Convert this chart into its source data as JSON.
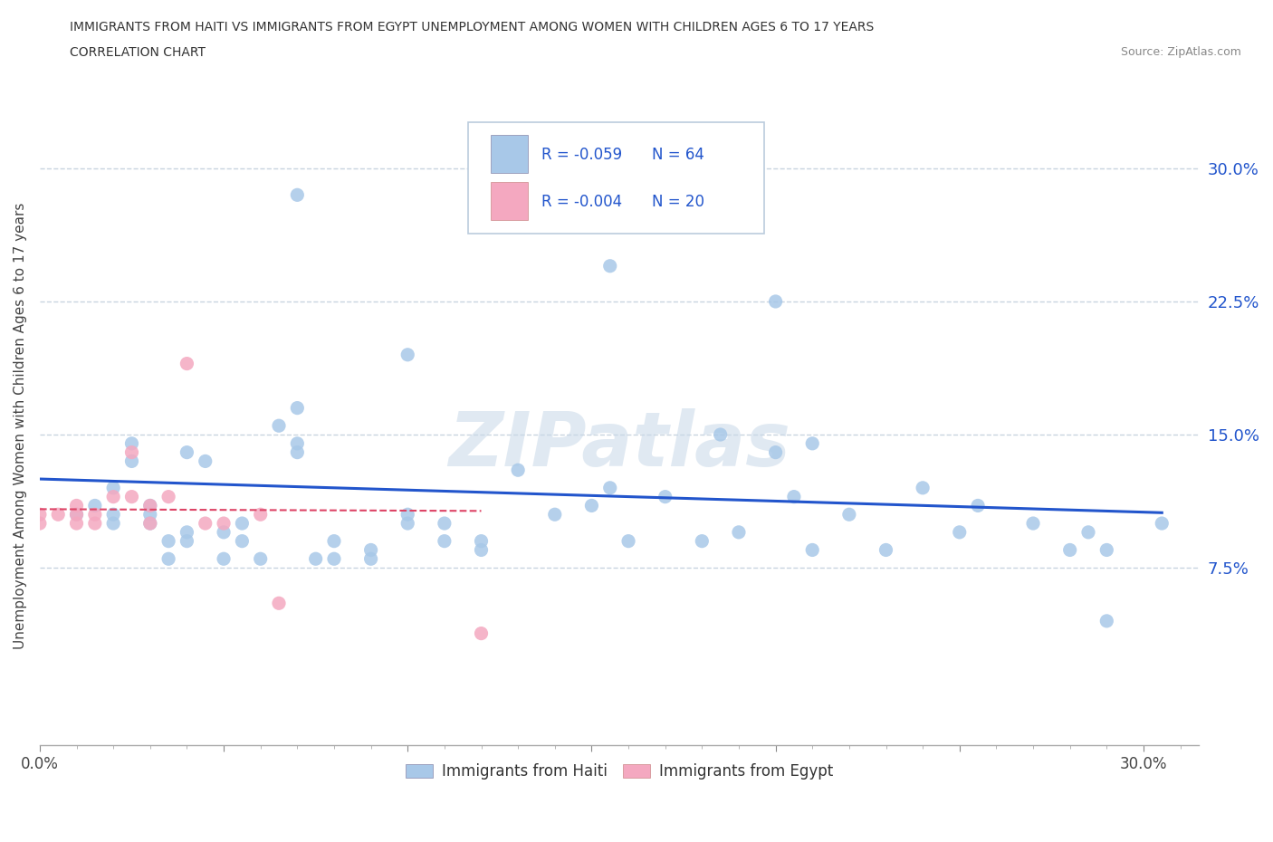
{
  "title_line1": "IMMIGRANTS FROM HAITI VS IMMIGRANTS FROM EGYPT UNEMPLOYMENT AMONG WOMEN WITH CHILDREN AGES 6 TO 17 YEARS",
  "title_line2": "CORRELATION CHART",
  "source_text": "Source: ZipAtlas.com",
  "ylabel": "Unemployment Among Women with Children Ages 6 to 17 years",
  "xlim": [
    0.0,
    0.315
  ],
  "ylim": [
    -0.025,
    0.335
  ],
  "ytick_vals_right": [
    0.075,
    0.15,
    0.225,
    0.3
  ],
  "ytick_labels_right": [
    "7.5%",
    "15.0%",
    "22.5%",
    "30.0%"
  ],
  "xtick_vals": [
    0.0,
    0.05,
    0.1,
    0.15,
    0.2,
    0.25,
    0.3
  ],
  "xtick_labels": [
    "0.0%",
    "",
    "",
    "",
    "",
    "",
    "30.0%"
  ],
  "watermark": "ZIPatlas",
  "haiti_color": "#a8c8e8",
  "egypt_color": "#f4a8c0",
  "haiti_line_color": "#2255cc",
  "egypt_line_color": "#dd4466",
  "legend_R_haiti": "-0.059",
  "legend_N_haiti": "64",
  "legend_R_egypt": "-0.004",
  "legend_N_egypt": "20",
  "haiti_scatter_x": [
    0.01,
    0.015,
    0.02,
    0.02,
    0.02,
    0.025,
    0.025,
    0.03,
    0.03,
    0.03,
    0.035,
    0.035,
    0.04,
    0.04,
    0.04,
    0.045,
    0.05,
    0.05,
    0.055,
    0.055,
    0.06,
    0.065,
    0.07,
    0.07,
    0.07,
    0.075,
    0.08,
    0.08,
    0.09,
    0.09,
    0.1,
    0.1,
    0.11,
    0.11,
    0.12,
    0.12,
    0.13,
    0.14,
    0.15,
    0.155,
    0.16,
    0.17,
    0.18,
    0.185,
    0.19,
    0.2,
    0.205,
    0.21,
    0.22,
    0.23,
    0.24,
    0.25,
    0.255,
    0.27,
    0.28,
    0.285,
    0.29,
    0.305,
    0.07,
    0.1,
    0.155,
    0.2,
    0.21,
    0.29
  ],
  "haiti_scatter_y": [
    0.105,
    0.11,
    0.1,
    0.105,
    0.12,
    0.135,
    0.145,
    0.1,
    0.105,
    0.11,
    0.08,
    0.09,
    0.09,
    0.095,
    0.14,
    0.135,
    0.08,
    0.095,
    0.09,
    0.1,
    0.08,
    0.155,
    0.14,
    0.145,
    0.165,
    0.08,
    0.08,
    0.09,
    0.08,
    0.085,
    0.1,
    0.105,
    0.09,
    0.1,
    0.085,
    0.09,
    0.13,
    0.105,
    0.11,
    0.12,
    0.09,
    0.115,
    0.09,
    0.15,
    0.095,
    0.14,
    0.115,
    0.145,
    0.105,
    0.085,
    0.12,
    0.095,
    0.11,
    0.1,
    0.085,
    0.095,
    0.085,
    0.1,
    0.285,
    0.195,
    0.245,
    0.225,
    0.085,
    0.045
  ],
  "egypt_scatter_x": [
    0.0,
    0.0,
    0.005,
    0.01,
    0.01,
    0.01,
    0.015,
    0.015,
    0.02,
    0.025,
    0.025,
    0.03,
    0.03,
    0.035,
    0.04,
    0.045,
    0.05,
    0.06,
    0.065,
    0.12
  ],
  "egypt_scatter_y": [
    0.1,
    0.105,
    0.105,
    0.1,
    0.105,
    0.11,
    0.1,
    0.105,
    0.115,
    0.14,
    0.115,
    0.1,
    0.11,
    0.115,
    0.19,
    0.1,
    0.1,
    0.105,
    0.055,
    0.038
  ],
  "haiti_trend_x": [
    0.0,
    0.305
  ],
  "haiti_trend_y": [
    0.125,
    0.106
  ],
  "egypt_trend_x": [
    0.0,
    0.12
  ],
  "egypt_trend_y": [
    0.108,
    0.107
  ],
  "background_color": "#ffffff",
  "grid_color": "#c8d4e0"
}
